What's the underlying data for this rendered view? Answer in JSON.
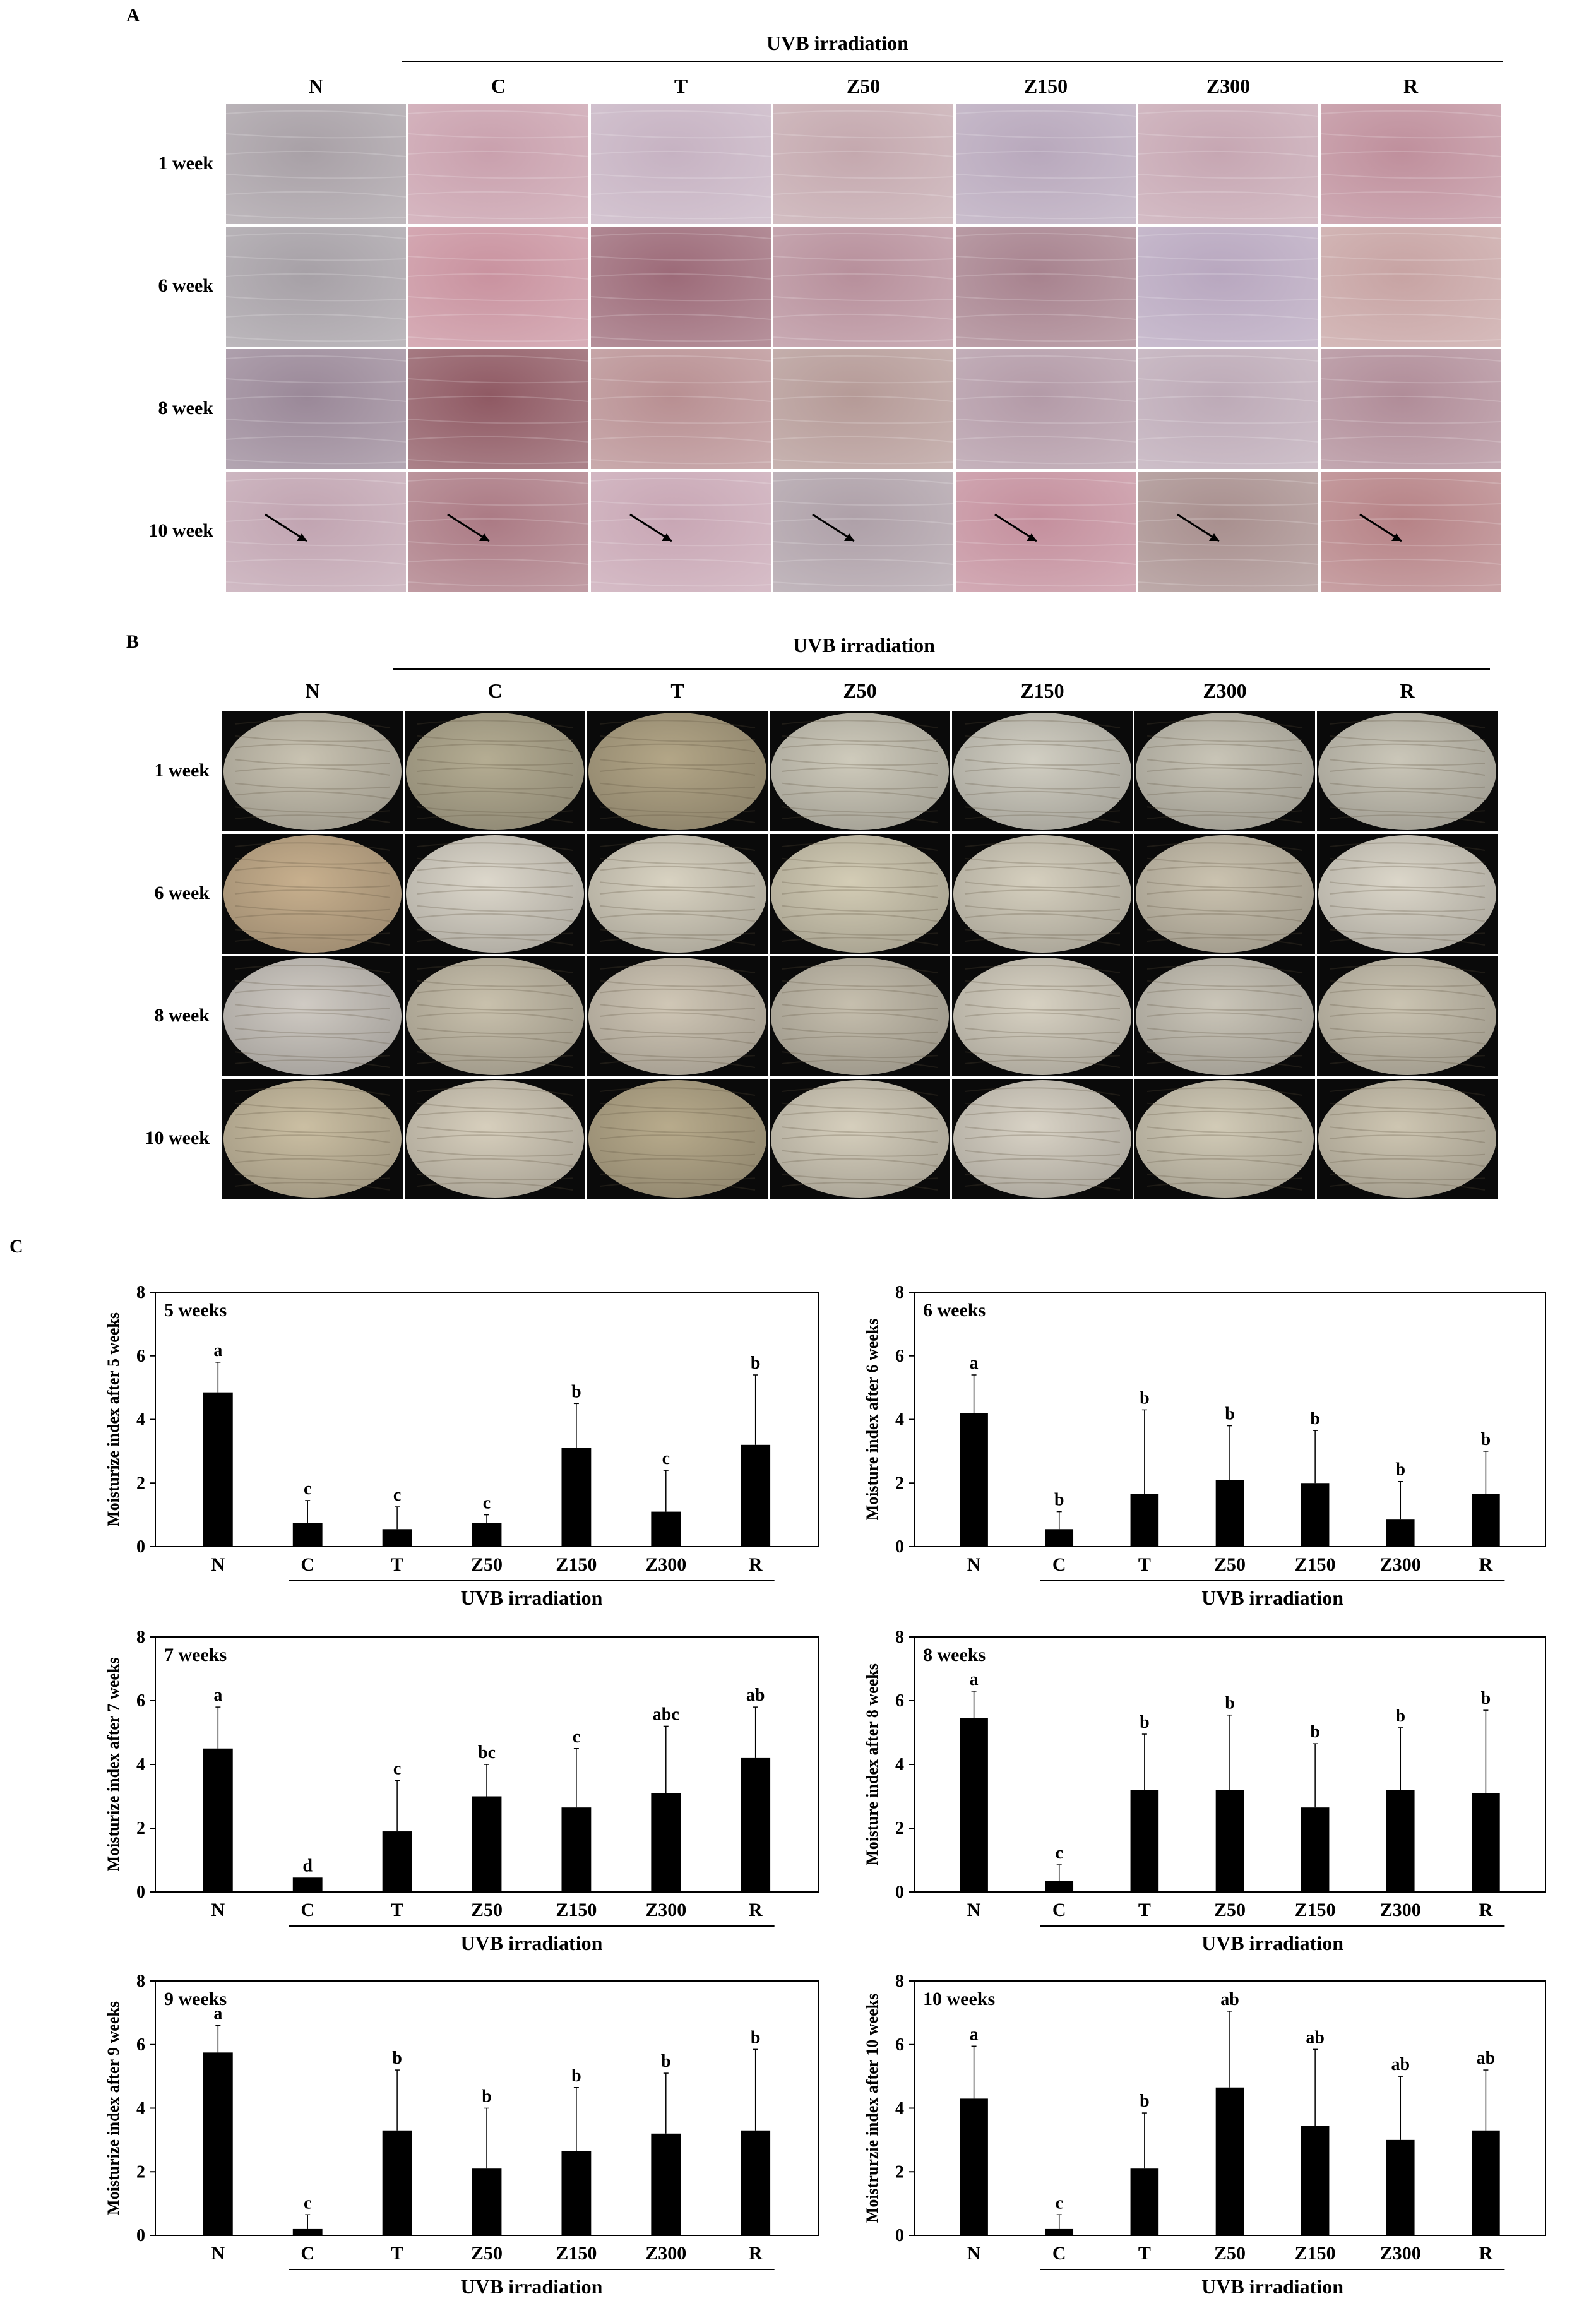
{
  "panel_a": {
    "letter": "A",
    "header": "UVB irradiation",
    "columns": [
      "N",
      "C",
      "T",
      "Z50",
      "Z150",
      "Z300",
      "R"
    ],
    "rows": [
      "1 week",
      "6 week",
      "8 week",
      "10 week"
    ],
    "tints": [
      [
        "#a8a0a6",
        "#c9a0ad",
        "#c6b2c2",
        "#c4a8ae",
        "#b8a8bc",
        "#c6a6b2",
        "#bf8f9c"
      ],
      [
        "#a6a0a6",
        "#c9929f",
        "#9c6a78",
        "#b78f9b",
        "#a7828e",
        "#b8a7bf",
        "#c7a3a3"
      ],
      [
        "#9a8898",
        "#8f5963",
        "#b88f92",
        "#b59a97",
        "#b39aa7",
        "#bdaab7",
        "#b08c98"
      ],
      [
        "#c1a4b1",
        "#ab7a84",
        "#c8a6b4",
        "#aea0a8",
        "#c48f9d",
        "#a88f8e",
        "#b68286"
      ]
    ]
  },
  "panel_b": {
    "letter": "B",
    "header": "UVB irradiation",
    "columns": [
      "N",
      "C",
      "T",
      "Z50",
      "Z150",
      "Z300",
      "R"
    ],
    "rows": [
      "1 week",
      "6 week",
      "8 week",
      "10 week"
    ],
    "tints": [
      [
        "#c9c3b2",
        "#b5ad93",
        "#b3a687",
        "#cfcbbc",
        "#d2cfc3",
        "#c9c5b7",
        "#cbc7b9"
      ],
      [
        "#c8b08e",
        "#ddd8cc",
        "#d9d3c2",
        "#d4cdb6",
        "#d6d0bf",
        "#cbc3b0",
        "#dcd7ca"
      ],
      [
        "#d0cbc4",
        "#c9c1ad",
        "#d0c7b6",
        "#c6bfae",
        "#d8d2c3",
        "#cbc6b9",
        "#cbc4b2"
      ],
      [
        "#cbbfa3",
        "#d7cfbd",
        "#b8ab8c",
        "#d6cfbd",
        "#d9d3c6",
        "#d2cbb7",
        "#cec6b2"
      ]
    ]
  },
  "panel_c": {
    "letter": "C",
    "group_label": "UVB irradiation",
    "colors": {
      "bar": "#000000",
      "frame": "#000000"
    }
  },
  "chart_data": [
    {
      "type": "bar",
      "title": "5 weeks",
      "ylabel": "Moisturize index after 5 weeks",
      "categories": [
        "N",
        "C",
        "T",
        "Z50",
        "Z150",
        "Z300",
        "R"
      ],
      "values": [
        4.85,
        0.75,
        0.55,
        0.75,
        3.1,
        1.1,
        3.2
      ],
      "errors": [
        0.95,
        0.7,
        0.7,
        0.25,
        1.4,
        1.3,
        2.2
      ],
      "letters": [
        "a",
        "c",
        "c",
        "c",
        "b",
        "c",
        "b"
      ],
      "ylim": [
        0,
        8
      ],
      "yticks": [
        0,
        2,
        4,
        6,
        8
      ]
    },
    {
      "type": "bar",
      "title": "6 weeks",
      "ylabel": "Moisture index after 6 weeks",
      "categories": [
        "N",
        "C",
        "T",
        "Z50",
        "Z150",
        "Z300",
        "R"
      ],
      "values": [
        4.2,
        0.55,
        1.65,
        2.1,
        2.0,
        0.85,
        1.65
      ],
      "errors": [
        1.2,
        0.55,
        2.65,
        1.7,
        1.65,
        1.2,
        1.35
      ],
      "letters": [
        "a",
        "b",
        "b",
        "b",
        "b",
        "b",
        "b"
      ],
      "ylim": [
        0,
        8
      ],
      "yticks": [
        0,
        2,
        4,
        6,
        8
      ]
    },
    {
      "type": "bar",
      "title": "7 weeks",
      "ylabel": "Moisturize index after 7 weeks",
      "categories": [
        "N",
        "C",
        "T",
        "Z50",
        "Z150",
        "Z300",
        "R"
      ],
      "values": [
        4.5,
        0.45,
        1.9,
        3.0,
        2.65,
        3.1,
        4.2
      ],
      "errors": [
        1.3,
        0.0,
        1.6,
        1.0,
        1.85,
        2.1,
        1.6
      ],
      "letters": [
        "a",
        "d",
        "c",
        "bc",
        "c",
        "abc",
        "ab"
      ],
      "ylim": [
        0,
        8
      ],
      "yticks": [
        0,
        2,
        4,
        6,
        8
      ]
    },
    {
      "type": "bar",
      "title": "8 weeks",
      "ylabel": "Moisture index after 8 weeks",
      "categories": [
        "N",
        "C",
        "T",
        "Z50",
        "Z150",
        "Z300",
        "R"
      ],
      "values": [
        5.45,
        0.35,
        3.2,
        3.2,
        2.65,
        3.2,
        3.1
      ],
      "errors": [
        0.85,
        0.5,
        1.75,
        2.35,
        2.0,
        1.95,
        2.6
      ],
      "letters": [
        "a",
        "c",
        "b",
        "b",
        "b",
        "b",
        "b"
      ],
      "ylim": [
        0,
        8
      ],
      "yticks": [
        0,
        2,
        4,
        6,
        8
      ]
    },
    {
      "type": "bar",
      "title": "9 weeks",
      "ylabel": "Moisturize index after 9 weeks",
      "categories": [
        "N",
        "C",
        "T",
        "Z50",
        "Z150",
        "Z300",
        "R"
      ],
      "values": [
        5.75,
        0.2,
        3.3,
        2.1,
        2.65,
        3.2,
        3.3
      ],
      "errors": [
        0.85,
        0.45,
        1.9,
        1.9,
        2.0,
        1.9,
        2.55
      ],
      "letters": [
        "a",
        "c",
        "b",
        "b",
        "b",
        "b",
        "b"
      ],
      "ylim": [
        0,
        8
      ],
      "yticks": [
        0,
        2,
        4,
        6,
        8
      ]
    },
    {
      "type": "bar",
      "title": "10 weeks",
      "ylabel": "Moistrurzie index after 10 weeks",
      "categories": [
        "N",
        "C",
        "T",
        "Z50",
        "Z150",
        "Z300",
        "R"
      ],
      "values": [
        4.3,
        0.2,
        2.1,
        4.65,
        3.45,
        3.0,
        3.3
      ],
      "errors": [
        1.65,
        0.45,
        1.75,
        2.4,
        2.4,
        2.0,
        1.9
      ],
      "letters": [
        "a",
        "c",
        "b",
        "ab",
        "ab",
        "ab",
        "ab"
      ],
      "ylim": [
        0,
        8
      ],
      "yticks": [
        0,
        2,
        4,
        6,
        8
      ]
    }
  ]
}
